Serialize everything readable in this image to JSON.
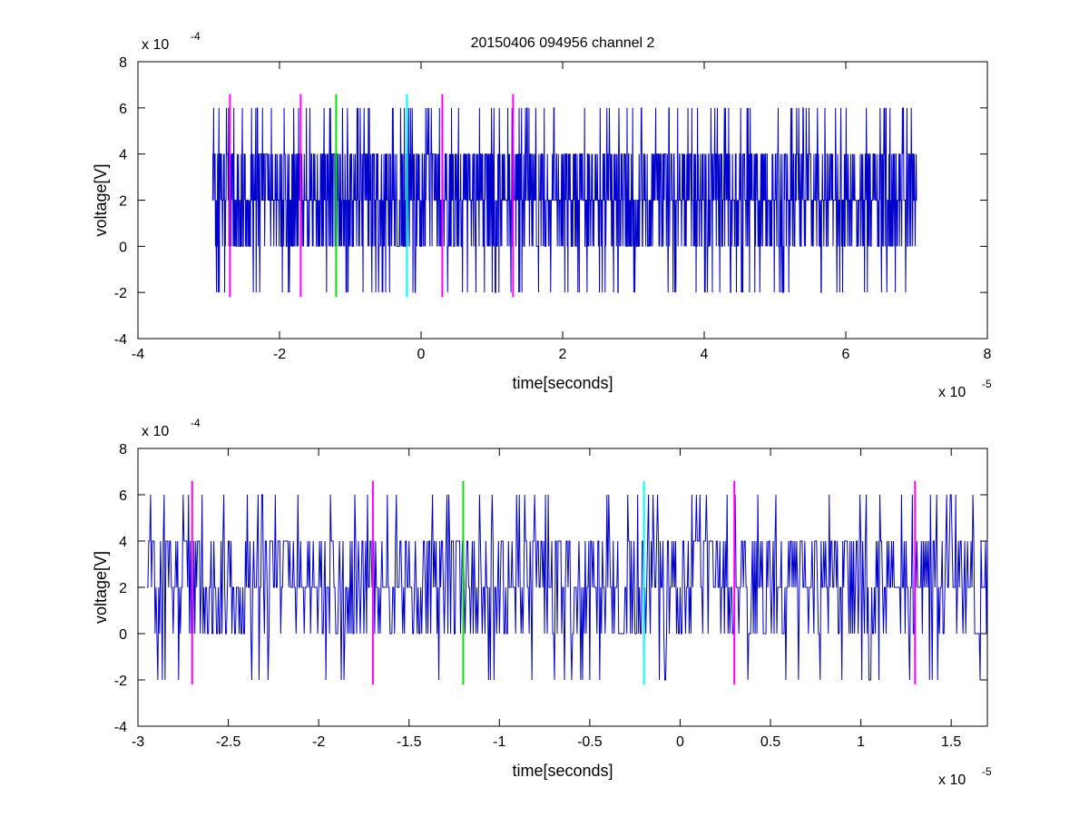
{
  "chart_data": [
    {
      "type": "line",
      "title": "20150406 094956 channel 2",
      "xlabel": "time[seconds]",
      "ylabel": "voltage[V]",
      "x_exponent_label": "x 10",
      "x_exponent": "-5",
      "y_exponent_label": "x 10",
      "y_exponent": "-4",
      "x_scale": 1e-05,
      "y_scale": 0.0001,
      "xlim": [
        -4e-05,
        8e-05
      ],
      "ylim": [
        -0.0004,
        0.0008
      ],
      "xticks": [
        -4,
        -2,
        0,
        2,
        4,
        6,
        8
      ],
      "xtick_labels": [
        "-4",
        "-2",
        "0",
        "2",
        "4",
        "6",
        "8"
      ],
      "yticks": [
        -4,
        -2,
        0,
        2,
        4,
        6,
        8
      ],
      "ytick_labels": [
        "-4",
        "-2",
        "0",
        "2",
        "4",
        "6",
        "8"
      ],
      "grid": false,
      "signal": {
        "color": "#0000cc",
        "x_start": -2.95e-05,
        "x_end": 7e-05,
        "levels": [
          -0.0002,
          0,
          0.0002,
          0.0004,
          0.0006
        ]
      },
      "markers": [
        {
          "x": -2.7e-05,
          "color": "#ff00ff"
        },
        {
          "x": -1.7e-05,
          "color": "#ff00ff"
        },
        {
          "x": -1.2e-05,
          "color": "#00e600"
        },
        {
          "x": -2e-06,
          "color": "#00ffff"
        },
        {
          "x": 3e-06,
          "color": "#ff00ff"
        },
        {
          "x": 1.3e-05,
          "color": "#ff00ff"
        }
      ],
      "marker_y_range": [
        -0.00022,
        0.00066
      ]
    },
    {
      "type": "line",
      "title": "",
      "xlabel": "time[seconds]",
      "ylabel": "voltage[V]",
      "x_exponent_label": "x 10",
      "x_exponent": "-5",
      "y_exponent_label": "x 10",
      "y_exponent": "-4",
      "x_scale": 1e-05,
      "y_scale": 0.0001,
      "xlim": [
        -3e-05,
        1.7e-05
      ],
      "ylim": [
        -0.0004,
        0.0008
      ],
      "xticks": [
        -3,
        -2.5,
        -2,
        -1.5,
        -1,
        -0.5,
        0,
        0.5,
        1,
        1.5
      ],
      "xtick_labels": [
        "-3",
        "-2.5",
        "-2",
        "-1.5",
        "-1",
        "-0.5",
        "0",
        "0.5",
        "1",
        "1.5"
      ],
      "yticks": [
        -4,
        -2,
        0,
        2,
        4,
        6,
        8
      ],
      "ytick_labels": [
        "-4",
        "-2",
        "0",
        "2",
        "4",
        "6",
        "8"
      ],
      "grid": false,
      "signal": {
        "color": "#0000cc",
        "x_start": -2.95e-05,
        "x_end": 1.7e-05,
        "levels": [
          -0.0002,
          0,
          0.0002,
          0.0004,
          0.0006
        ]
      },
      "markers": [
        {
          "x": -2.7e-05,
          "color": "#ff00ff"
        },
        {
          "x": -1.7e-05,
          "color": "#ff00ff"
        },
        {
          "x": -1.2e-05,
          "color": "#00e600"
        },
        {
          "x": -2e-06,
          "color": "#00ffff"
        },
        {
          "x": 3e-06,
          "color": "#ff00ff"
        },
        {
          "x": 1.3e-05,
          "color": "#ff00ff"
        }
      ],
      "marker_y_range": [
        -0.00022,
        0.00066
      ]
    }
  ]
}
